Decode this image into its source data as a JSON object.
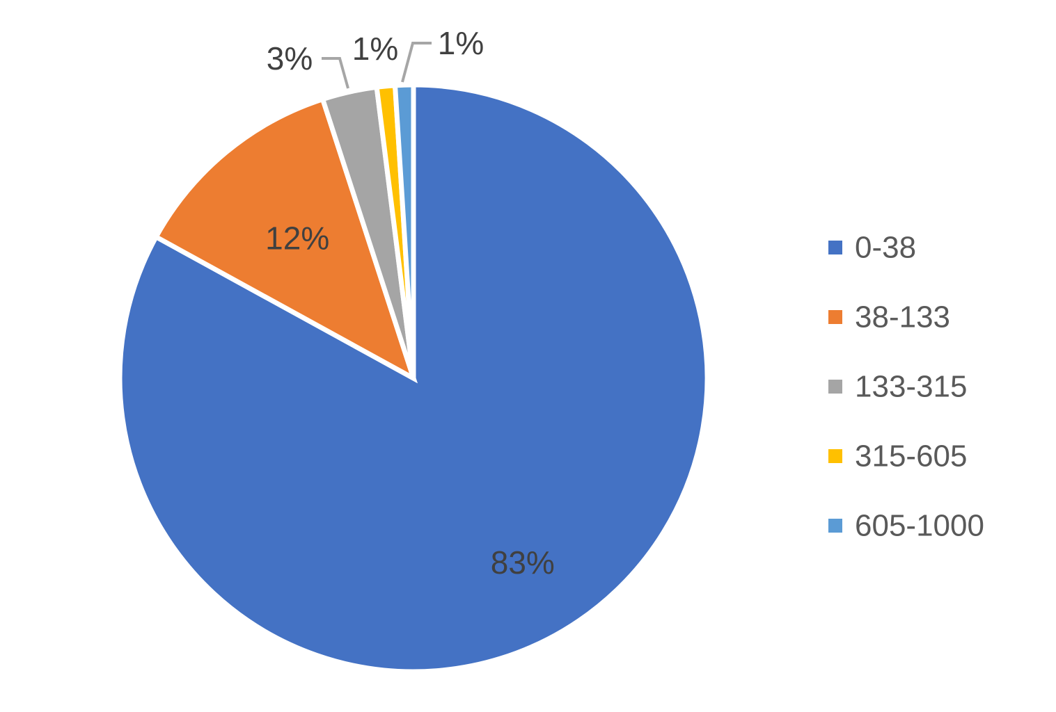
{
  "chart_data": {
    "type": "pie",
    "title": "",
    "legend_position": "right",
    "start_angle_deg": 0,
    "direction": "clockwise",
    "slices": [
      {
        "label": "0-38",
        "value": 83,
        "data_label": "83%",
        "color": "#4472C4"
      },
      {
        "label": "38-133",
        "value": 12,
        "data_label": "12%",
        "color": "#ED7D31"
      },
      {
        "label": "133-315",
        "value": 3,
        "data_label": "3%",
        "color": "#A5A5A5"
      },
      {
        "label": "315-605",
        "value": 1,
        "data_label": "1%",
        "color": "#FFC000"
      },
      {
        "label": "605-1000",
        "value": 1,
        "data_label": "1%",
        "color": "#5B9BD5"
      }
    ]
  }
}
